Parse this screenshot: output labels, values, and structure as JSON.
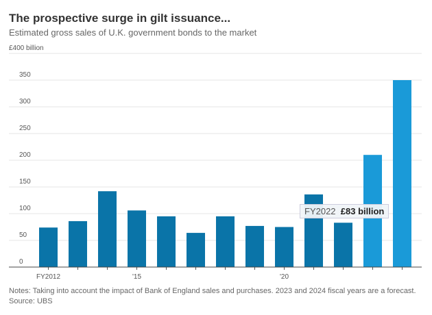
{
  "chart_data": {
    "type": "bar",
    "title": "The prospective surge in gilt issuance...",
    "subtitle": "Estimated gross sales of U.K. government bonds to the market",
    "xlabel": "",
    "ylabel": "",
    "y_unit_label": "£400 billion",
    "ylim": [
      0,
      400
    ],
    "yticks": [
      "0",
      "50",
      "100",
      "150",
      "200",
      "250",
      "300",
      "350"
    ],
    "grid": true,
    "categories": [
      "FY2012",
      "FY2013",
      "FY2014",
      "FY2015",
      "FY2016",
      "FY2017",
      "FY2018",
      "FY2019",
      "FY2020",
      "FY2021",
      "FY2022",
      "FY2023",
      "FY2024"
    ],
    "x_tick_labels": {
      "FY2012": "FY2012",
      "FY2015": "'15",
      "FY2020": "'20"
    },
    "values": [
      74,
      86,
      142,
      106,
      95,
      64,
      95,
      77,
      75,
      136,
      83,
      210,
      350
    ],
    "forecast": [
      false,
      false,
      false,
      false,
      false,
      false,
      false,
      false,
      false,
      false,
      false,
      true,
      true
    ],
    "colors": {
      "actual": "#0a74a8",
      "forecast": "#1a9ad8"
    },
    "tooltip": {
      "category": "FY2022",
      "label": "FY2022",
      "value_text": "£83 billion"
    },
    "notes": "Notes: Taking into account the impact of Bank of England sales and purchases. 2023 and 2024 fiscal years are a forecast.",
    "source": "Source: UBS"
  }
}
